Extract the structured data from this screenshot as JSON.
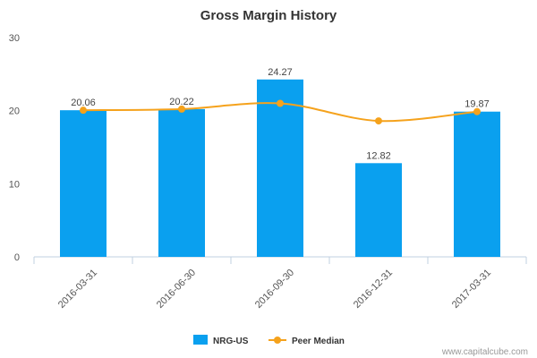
{
  "chart_data": {
    "type": "bar",
    "title": "Gross Margin History",
    "categories": [
      "2016-03-31",
      "2016-06-30",
      "2016-09-30",
      "2016-12-31",
      "2017-03-31"
    ],
    "series": [
      {
        "name": "NRG-US",
        "type": "bar",
        "color": "#0aa0ef",
        "values": [
          20.06,
          20.22,
          24.27,
          12.82,
          19.87
        ]
      },
      {
        "name": "Peer Median",
        "type": "line",
        "color": "#f5a21c",
        "values": [
          20.06,
          20.22,
          21.0,
          18.6,
          19.87
        ]
      }
    ],
    "data_labels": [
      "20.06",
      "20.22",
      "24.27",
      "12.82",
      "19.87"
    ],
    "y_ticks": [
      "0",
      "10",
      "20",
      "30"
    ],
    "ylim": [
      0,
      30
    ],
    "grid": false,
    "legend_position": "bottom"
  },
  "credit": "www.capitalcube.com"
}
